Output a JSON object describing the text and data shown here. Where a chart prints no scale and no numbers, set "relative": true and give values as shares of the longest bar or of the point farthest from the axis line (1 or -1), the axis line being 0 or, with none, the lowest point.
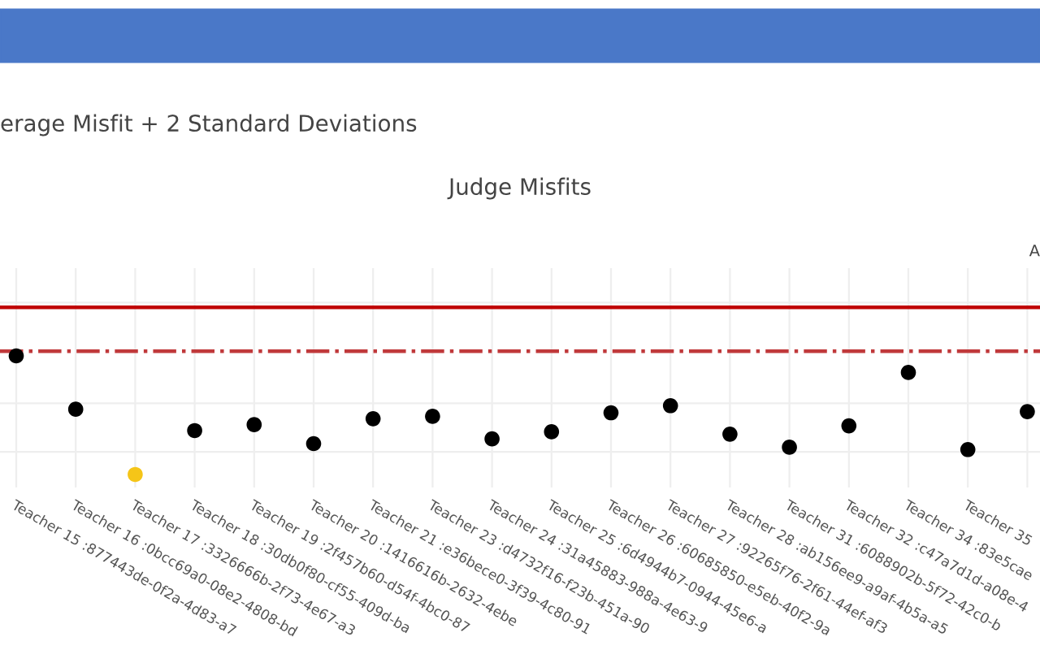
{
  "chart_data": {
    "type": "scatter",
    "title": "Judge Misfits",
    "relative": true,
    "categories": [
      "Teacher 15 :877443de-0f2a-4d83-a7",
      "Teacher 16 :0bcc69a0-08e2-4808-bd",
      "Teacher 17 :3326666b-2f73-4e67-a3",
      "Teacher 18 :30db0f80-cf55-409d-ba",
      "Teacher 19 :2f457b60-d54f-4bc0-87",
      "Teacher 20 :1416616b-2632-4ebe",
      "Teacher 21 :e36bece0-3f39-4c80-91",
      "Teacher 23 :d4732f16-f23b-451a-90",
      "Teacher 24 :31a45883-988a-4e63-9",
      "Teacher 25 :6d4944b7-0944-45e6-a",
      "Teacher 26 :60685850-e5eb-40f2-9a",
      "Teacher 27 :92265f76-2f61-44ef-af3",
      "Teacher 28 :ab156ee9-a9af-4b5a-a5",
      "Teacher 31 :6088902b-5f72-42c0-b",
      "Teacher 32 :c47a7d1d-a08e-4",
      "Teacher 34 :83e5cae",
      "Teacher 35",
      null
    ],
    "values": [
      1.0,
      0.55,
      0.0,
      0.37,
      0.42,
      0.26,
      0.47,
      0.49,
      0.3,
      0.36,
      0.52,
      0.58,
      0.34,
      0.23,
      0.41,
      0.86,
      0.21,
      0.53
    ],
    "colors": [
      "#000000",
      "#000000",
      "#f5c518",
      "#000000",
      "#000000",
      "#000000",
      "#000000",
      "#000000",
      "#000000",
      "#000000",
      "#000000",
      "#000000",
      "#000000",
      "#000000",
      "#000000",
      "#000000",
      "#000000",
      "#000000"
    ],
    "marker": "circle",
    "ref_lines": [
      {
        "axis": "y",
        "value": 1.41,
        "color": "#c00000",
        "line_style": "solid"
      },
      {
        "axis": "y",
        "value": 1.04,
        "color": "#c0393b",
        "line_style": "dashdot"
      }
    ],
    "annotations": [
      "erage Misfit + 2 Standard Deviations",
      "A"
    ],
    "grid": true
  }
}
